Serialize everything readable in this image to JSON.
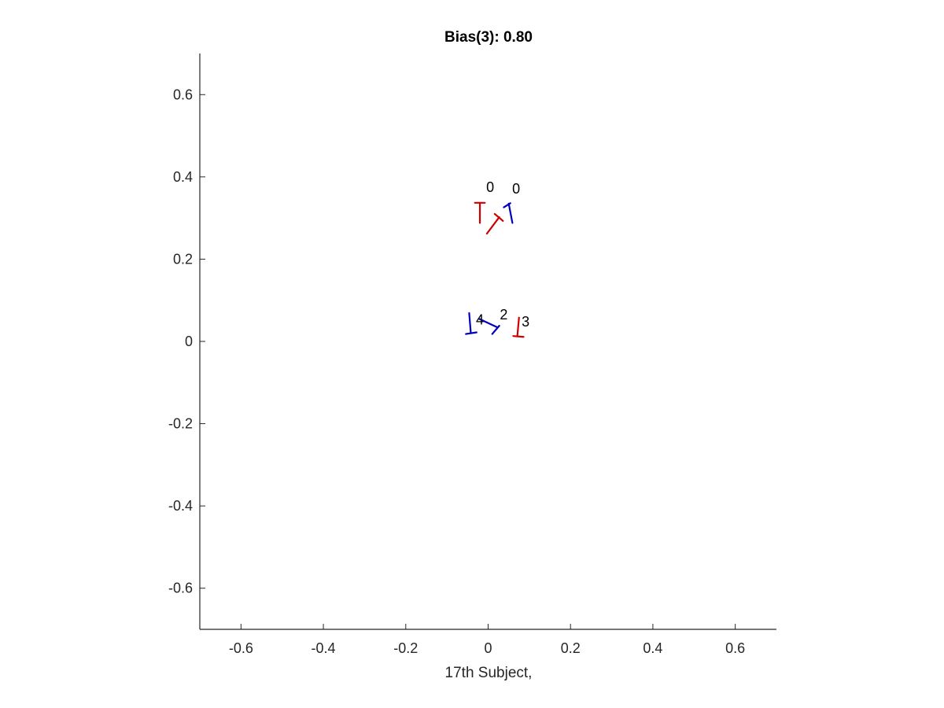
{
  "chart_data": {
    "type": "scatter",
    "title": "Bias(3): 0.80",
    "xlabel": "17th Subject,",
    "ylabel": "",
    "xlim": [
      -0.7,
      0.7
    ],
    "ylim": [
      -0.7,
      0.7
    ],
    "xticks": [
      -0.6,
      -0.4,
      -0.2,
      0,
      0.2,
      0.4,
      0.6
    ],
    "yticks": [
      -0.6,
      -0.4,
      -0.2,
      0,
      0.2,
      0.4,
      0.6
    ],
    "xtick_labels": [
      "-0.6",
      "-0.4",
      "-0.2",
      "0",
      "0.2",
      "0.4",
      "0.6"
    ],
    "ytick_labels": [
      "-0.6",
      "-0.4",
      "-0.2",
      "0",
      "0.2",
      "0.4",
      "0.6"
    ],
    "grid": false,
    "colors": {
      "red": "#cc0000",
      "blue": "#0000bb"
    },
    "markers": [
      {
        "color": "red",
        "segments": [
          [
            [
              -0.02,
              0.335
            ],
            [
              -0.02,
              0.288
            ]
          ],
          [
            [
              -0.032,
              0.337
            ],
            [
              -0.008,
              0.337
            ]
          ]
        ]
      },
      {
        "color": "red",
        "segments": [
          [
            [
              -0.003,
              0.262
            ],
            [
              0.027,
              0.302
            ]
          ],
          [
            [
              0.016,
              0.31
            ],
            [
              0.036,
              0.293
            ]
          ]
        ]
      },
      {
        "color": "blue",
        "segments": [
          [
            [
              0.05,
              0.335
            ],
            [
              0.059,
              0.288
            ]
          ],
          [
            [
              0.038,
              0.326
            ],
            [
              0.054,
              0.336
            ]
          ]
        ]
      },
      {
        "color": "blue",
        "segments": [
          [
            [
              -0.046,
              0.069
            ],
            [
              -0.042,
              0.02
            ]
          ],
          [
            [
              -0.054,
              0.018
            ],
            [
              -0.028,
              0.022
            ]
          ]
        ]
      },
      {
        "color": "blue",
        "segments": [
          [
            [
              -0.022,
              0.055
            ],
            [
              0.021,
              0.035
            ]
          ],
          [
            [
              0.01,
              0.018
            ],
            [
              0.027,
              0.038
            ]
          ]
        ]
      },
      {
        "color": "red",
        "segments": [
          [
            [
              0.075,
              0.058
            ],
            [
              0.071,
              0.014
            ]
          ],
          [
            [
              0.061,
              0.013
            ],
            [
              0.086,
              0.011
            ]
          ]
        ]
      }
    ],
    "annotations": [
      {
        "text": "0",
        "x": 0.005,
        "y": 0.363
      },
      {
        "text": "0",
        "x": 0.068,
        "y": 0.36
      },
      {
        "text": "4",
        "x": -0.02,
        "y": 0.041
      },
      {
        "text": "2",
        "x": 0.038,
        "y": 0.054
      },
      {
        "text": "3",
        "x": 0.091,
        "y": 0.036
      }
    ]
  }
}
